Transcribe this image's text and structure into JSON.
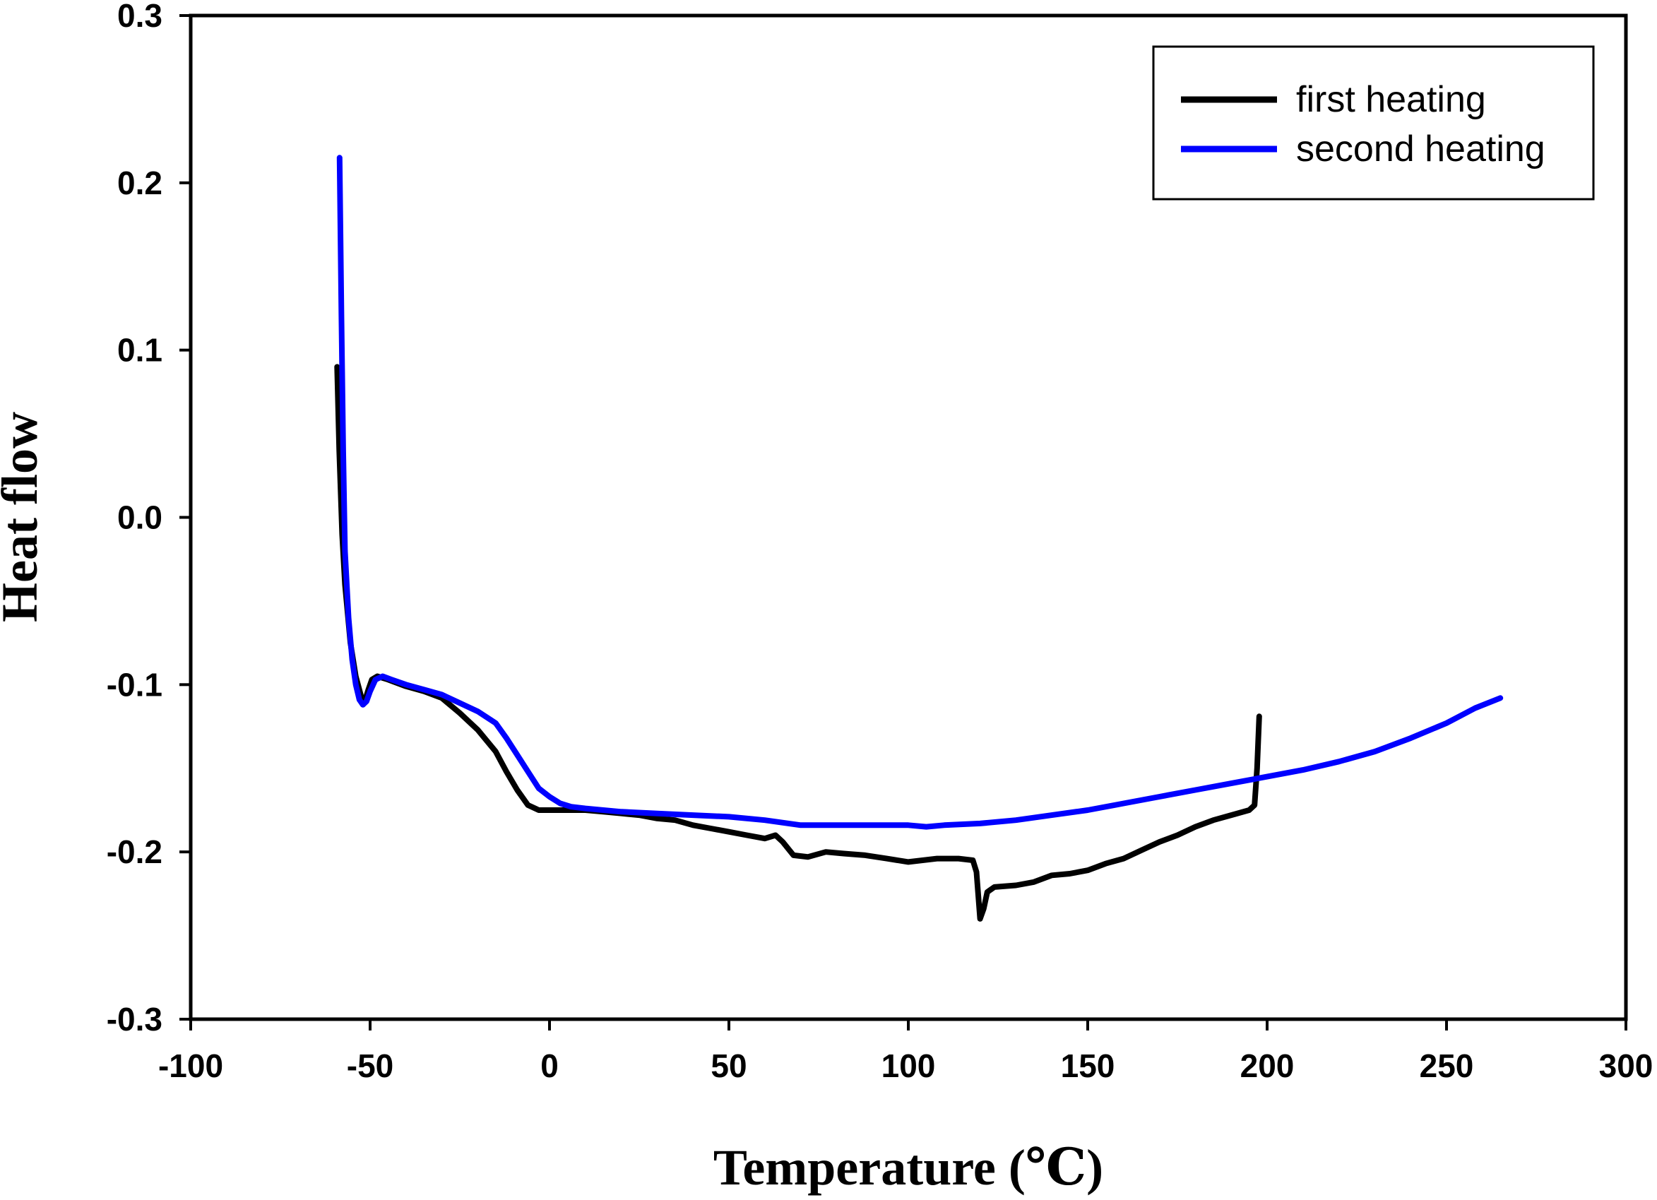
{
  "chart_data": {
    "type": "line",
    "title": "",
    "xlabel": "Temperature (℃)",
    "ylabel": "Heat flow",
    "xlim": [
      -100,
      300
    ],
    "ylim": [
      -0.3,
      0.3
    ],
    "xticks": [
      -100,
      -50,
      0,
      50,
      100,
      150,
      200,
      250,
      300
    ],
    "yticks": [
      -0.3,
      -0.2,
      -0.1,
      0.0,
      0.1,
      0.2,
      0.3
    ],
    "xtick_labels": [
      "-100",
      "-50",
      "0",
      "50",
      "100",
      "150",
      "200",
      "250",
      "300"
    ],
    "ytick_labels": [
      "-0.3",
      "-0.2",
      "-0.1",
      "0.0",
      "0.1",
      "0.2",
      "0.3"
    ],
    "grid": false,
    "legend_position": "top-right",
    "series": [
      {
        "name": "first heating",
        "color": "#000000",
        "points": [
          [
            -59.2,
            0.09
          ],
          [
            -58.6,
            0.04
          ],
          [
            -57.8,
            -0.01
          ],
          [
            -57.0,
            -0.04
          ],
          [
            -55.5,
            -0.075
          ],
          [
            -54.0,
            -0.095
          ],
          [
            -52.5,
            -0.107
          ],
          [
            -51.5,
            -0.11
          ],
          [
            -50.5,
            -0.103
          ],
          [
            -49.5,
            -0.097
          ],
          [
            -48,
            -0.095
          ],
          [
            -45,
            -0.097
          ],
          [
            -40,
            -0.101
          ],
          [
            -35,
            -0.104
          ],
          [
            -30,
            -0.108
          ],
          [
            -25,
            -0.117
          ],
          [
            -20,
            -0.127
          ],
          [
            -15,
            -0.14
          ],
          [
            -12,
            -0.152
          ],
          [
            -9,
            -0.163
          ],
          [
            -6,
            -0.172
          ],
          [
            -3,
            -0.175
          ],
          [
            0,
            -0.175
          ],
          [
            5,
            -0.175
          ],
          [
            10,
            -0.175
          ],
          [
            15,
            -0.176
          ],
          [
            20,
            -0.177
          ],
          [
            25,
            -0.178
          ],
          [
            30,
            -0.18
          ],
          [
            35,
            -0.181
          ],
          [
            40,
            -0.184
          ],
          [
            45,
            -0.186
          ],
          [
            50,
            -0.188
          ],
          [
            55,
            -0.19
          ],
          [
            60,
            -0.192
          ],
          [
            63,
            -0.19
          ],
          [
            65,
            -0.194
          ],
          [
            68,
            -0.202
          ],
          [
            72,
            -0.203
          ],
          [
            77,
            -0.2
          ],
          [
            82,
            -0.201
          ],
          [
            88,
            -0.202
          ],
          [
            94,
            -0.204
          ],
          [
            100,
            -0.206
          ],
          [
            104,
            -0.205
          ],
          [
            108,
            -0.204
          ],
          [
            114,
            -0.204
          ],
          [
            118,
            -0.205
          ],
          [
            119,
            -0.212
          ],
          [
            120,
            -0.24
          ],
          [
            121,
            -0.234
          ],
          [
            122,
            -0.224
          ],
          [
            124,
            -0.221
          ],
          [
            130,
            -0.22
          ],
          [
            135,
            -0.218
          ],
          [
            140,
            -0.214
          ],
          [
            145,
            -0.213
          ],
          [
            150,
            -0.211
          ],
          [
            155,
            -0.207
          ],
          [
            160,
            -0.204
          ],
          [
            165,
            -0.199
          ],
          [
            170,
            -0.194
          ],
          [
            175,
            -0.19
          ],
          [
            180,
            -0.185
          ],
          [
            185,
            -0.181
          ],
          [
            190,
            -0.178
          ],
          [
            195,
            -0.175
          ],
          [
            196.5,
            -0.172
          ],
          [
            197.2,
            -0.15
          ],
          [
            197.8,
            -0.119
          ]
        ]
      },
      {
        "name": "second heating",
        "color": "#0000ff",
        "points": [
          [
            -58.5,
            0.215
          ],
          [
            -58.0,
            0.12
          ],
          [
            -57.5,
            0.04
          ],
          [
            -57.0,
            -0.02
          ],
          [
            -56.0,
            -0.06
          ],
          [
            -55.0,
            -0.085
          ],
          [
            -54.0,
            -0.1
          ],
          [
            -53.0,
            -0.109
          ],
          [
            -52.0,
            -0.112
          ],
          [
            -51.0,
            -0.11
          ],
          [
            -50.0,
            -0.104
          ],
          [
            -48.5,
            -0.097
          ],
          [
            -46.5,
            -0.095
          ],
          [
            -44,
            -0.097
          ],
          [
            -40,
            -0.1
          ],
          [
            -35,
            -0.103
          ],
          [
            -30,
            -0.106
          ],
          [
            -25,
            -0.111
          ],
          [
            -20,
            -0.116
          ],
          [
            -15,
            -0.123
          ],
          [
            -12,
            -0.132
          ],
          [
            -9,
            -0.142
          ],
          [
            -6,
            -0.152
          ],
          [
            -3,
            -0.162
          ],
          [
            0,
            -0.167
          ],
          [
            3,
            -0.171
          ],
          [
            6,
            -0.173
          ],
          [
            10,
            -0.174
          ],
          [
            15,
            -0.175
          ],
          [
            20,
            -0.176
          ],
          [
            30,
            -0.177
          ],
          [
            40,
            -0.178
          ],
          [
            50,
            -0.179
          ],
          [
            60,
            -0.181
          ],
          [
            70,
            -0.184
          ],
          [
            80,
            -0.184
          ],
          [
            90,
            -0.184
          ],
          [
            100,
            -0.184
          ],
          [
            105,
            -0.185
          ],
          [
            110,
            -0.184
          ],
          [
            120,
            -0.183
          ],
          [
            130,
            -0.181
          ],
          [
            140,
            -0.178
          ],
          [
            150,
            -0.175
          ],
          [
            160,
            -0.171
          ],
          [
            170,
            -0.167
          ],
          [
            180,
            -0.163
          ],
          [
            190,
            -0.159
          ],
          [
            200,
            -0.155
          ],
          [
            210,
            -0.151
          ],
          [
            220,
            -0.146
          ],
          [
            230,
            -0.14
          ],
          [
            240,
            -0.132
          ],
          [
            250,
            -0.123
          ],
          [
            258,
            -0.114
          ],
          [
            265,
            -0.108
          ]
        ]
      }
    ]
  }
}
